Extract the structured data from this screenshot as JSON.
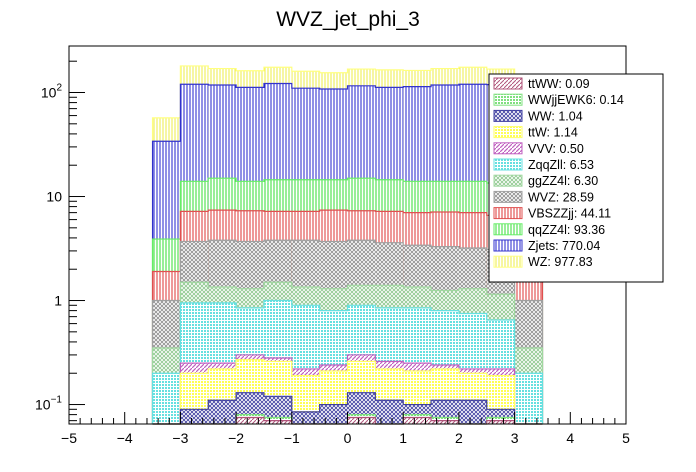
{
  "chart_data": {
    "type": "area",
    "title": "WVZ_jet_phi_3",
    "xlabel": "",
    "ylabel": "",
    "xlim": [
      -5,
      5
    ],
    "ylim": [
      0.065,
      280
    ],
    "yscale": "log",
    "x_ticks": [
      "−5",
      "−4",
      "−3",
      "−2",
      "−1",
      "0",
      "1",
      "2",
      "3",
      "4",
      "5"
    ],
    "y_ticks": [
      {
        "value": 0.1,
        "base": "10",
        "exp": "−1"
      },
      {
        "value": 1,
        "label": "1"
      },
      {
        "value": 10,
        "label": "10"
      },
      {
        "value": 100,
        "base": "10",
        "exp": "2"
      }
    ],
    "bin_edges": [
      -3.5,
      -3.0,
      -2.5,
      -2.0,
      -1.5,
      -1.0,
      -0.5,
      0.0,
      0.5,
      1.0,
      1.5,
      2.0,
      2.5,
      3.0,
      3.5
    ],
    "stack_order": "bottom-to-top",
    "cumulative_series": [
      {
        "name": "ttWW",
        "label": "ttWW: 0.09",
        "color": "#b0547a",
        "values": [
          0.01,
          0.055,
          0.06,
          0.075,
          0.07,
          0.06,
          0.06,
          0.075,
          0.06,
          0.075,
          0.07,
          0.06,
          0.07,
          0.01
        ]
      },
      {
        "name": "WWjjEWK6",
        "label": "WWjjEWK6: 0.14",
        "color": "#7fe07f",
        "values": [
          0.01,
          0.06,
          0.065,
          0.08,
          0.075,
          0.065,
          0.065,
          0.08,
          0.065,
          0.08,
          0.075,
          0.065,
          0.075,
          0.01
        ]
      },
      {
        "name": "WW",
        "label": "WW: 1.04",
        "color": "#3f3fa0",
        "values": [
          0.01,
          0.09,
          0.11,
          0.13,
          0.12,
          0.085,
          0.1,
          0.13,
          0.11,
          0.1,
          0.11,
          0.11,
          0.09,
          0.01
        ]
      },
      {
        "name": "ttW",
        "label": "ttW: 1.14",
        "color": "#ffff66",
        "values": [
          0.01,
          0.2,
          0.22,
          0.27,
          0.26,
          0.19,
          0.21,
          0.26,
          0.22,
          0.21,
          0.22,
          0.2,
          0.19,
          0.01
        ]
      },
      {
        "name": "VVV",
        "label": "VVV: 0.50",
        "color": "#c060c0",
        "values": [
          0.01,
          0.25,
          0.25,
          0.3,
          0.28,
          0.22,
          0.24,
          0.3,
          0.26,
          0.25,
          0.24,
          0.22,
          0.22,
          0.01
        ]
      },
      {
        "name": "ZqqZll",
        "label": "ZqqZll: 6.53",
        "color": "#66e0e0",
        "values": [
          0.2,
          0.95,
          0.95,
          0.85,
          1.0,
          0.9,
          0.8,
          0.9,
          0.85,
          0.85,
          0.8,
          0.75,
          0.65,
          0.2
        ]
      },
      {
        "name": "ggZZ4l",
        "label": "ggZZ4l: 6.30",
        "color": "#a0d8a0",
        "values": [
          0.35,
          1.5,
          1.35,
          1.3,
          1.5,
          1.35,
          1.3,
          1.4,
          1.4,
          1.35,
          1.25,
          1.3,
          1.15,
          0.35
        ]
      },
      {
        "name": "WVZ",
        "label": "WVZ: 28.59",
        "color": "#a0a0a0",
        "values": [
          1.0,
          3.7,
          3.8,
          3.7,
          3.8,
          3.8,
          3.7,
          3.8,
          3.6,
          3.4,
          3.3,
          3.2,
          3.1,
          1.0
        ]
      },
      {
        "name": "VBSZZjj",
        "label": "VBSZZjj: 44.11",
        "color": "#e05050",
        "values": [
          1.9,
          7.2,
          7.4,
          7.3,
          7.2,
          7.2,
          7.4,
          7.3,
          7.2,
          7.0,
          7.1,
          7.0,
          6.6,
          1.9
        ]
      },
      {
        "name": "qqZZ4l",
        "label": "qqZZ4l: 93.36",
        "color": "#66ee66",
        "values": [
          3.9,
          14.0,
          15.0,
          14.0,
          14.5,
          14.5,
          14.5,
          15.0,
          14.5,
          14.0,
          14.0,
          14.0,
          13.5,
          3.9
        ]
      },
      {
        "name": "Zjets",
        "label": "Zjets: 770.04",
        "color": "#3333cc",
        "values": [
          34,
          120,
          118,
          112,
          122,
          110,
          108,
          116,
          112,
          114,
          118,
          120,
          119,
          34
        ]
      },
      {
        "name": "WZ",
        "label": "WZ: 977.83",
        "color": "#ffff80",
        "values": [
          57,
          180,
          170,
          162,
          175,
          160,
          155,
          168,
          165,
          163,
          170,
          175,
          168,
          57
        ]
      }
    ]
  }
}
